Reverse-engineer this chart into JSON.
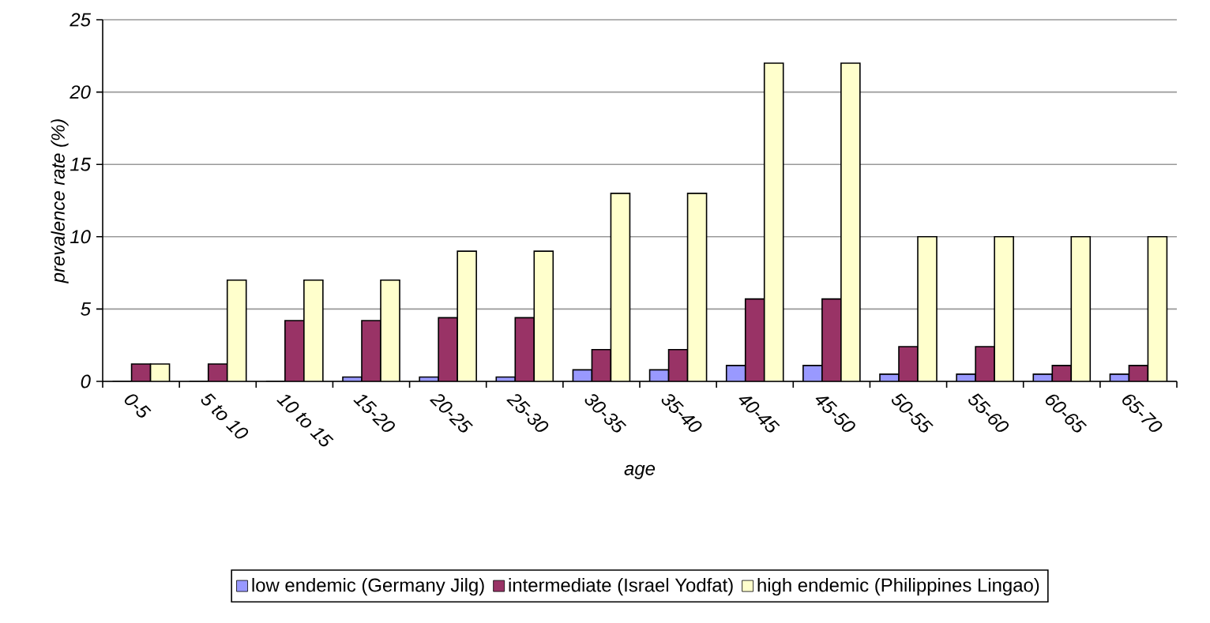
{
  "chart_data": {
    "type": "bar",
    "xlabel": "age",
    "ylabel": "prevalence rate (%)",
    "categories": [
      "0-5",
      "5 to 10",
      "10 to 15",
      "15-20",
      "20-25",
      "25-30",
      "30-35",
      "35-40",
      "40-45",
      "45-50",
      "50-55",
      "55-60",
      "60-65",
      "65-70"
    ],
    "series": [
      {
        "name": "low  endemic (Germany Jilg)",
        "color": "#9999ff",
        "values": [
          0,
          0,
          0,
          0.3,
          0.3,
          0.3,
          0.8,
          0.8,
          1.1,
          1.1,
          0.5,
          0.5,
          0.5,
          0.5
        ]
      },
      {
        "name": "intermediate (Israel Yodfat)",
        "color": "#993366",
        "values": [
          1.2,
          1.2,
          4.2,
          4.2,
          4.4,
          4.4,
          2.2,
          2.2,
          5.7,
          5.7,
          2.4,
          2.4,
          1.1,
          1.1
        ]
      },
      {
        "name": "high endemic (Philippines Lingao)",
        "color": "#ffffcc",
        "values": [
          1.2,
          7,
          7,
          7,
          9,
          9,
          13,
          13,
          22,
          22,
          10,
          10,
          10,
          10
        ]
      }
    ],
    "ylim": [
      0,
      25
    ],
    "yticks": [
      0,
      5,
      10,
      15,
      20,
      25
    ],
    "grid": "y",
    "legend": "bottom"
  }
}
